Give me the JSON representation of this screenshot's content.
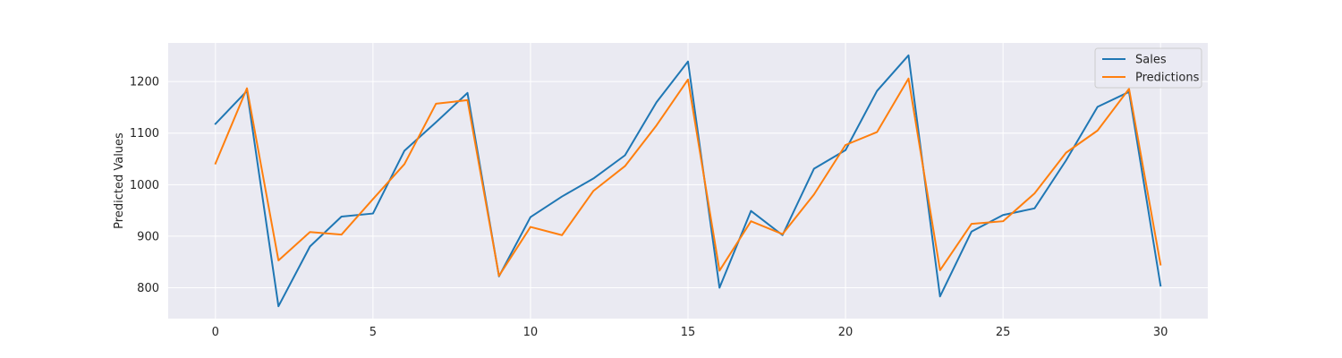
{
  "chart_data": {
    "type": "line",
    "title": "",
    "xlabel": "",
    "ylabel": "Predicted Values",
    "x": [
      0,
      1,
      2,
      3,
      4,
      5,
      6,
      7,
      8,
      9,
      10,
      11,
      12,
      13,
      14,
      15,
      16,
      17,
      18,
      19,
      20,
      21,
      22,
      23,
      24,
      25,
      26,
      27,
      28,
      29,
      30
    ],
    "xlim": [
      -1.5,
      31.5
    ],
    "ylim": [
      740,
      1275
    ],
    "xticks": [
      0,
      5,
      10,
      15,
      20,
      25,
      30
    ],
    "yticks": [
      800,
      900,
      1000,
      1100,
      1200
    ],
    "grid": true,
    "legend_position": "top-right",
    "series": [
      {
        "name": "Sales",
        "color": "#1f77b4",
        "values": [
          1118,
          1182,
          764,
          880,
          938,
          944,
          1066,
          1121,
          1178,
          822,
          937,
          977,
          1012,
          1057,
          1160,
          1239,
          800,
          949,
          902,
          1031,
          1067,
          1182,
          1251,
          783,
          909,
          941,
          954,
          1047,
          1151,
          1180,
          804
        ]
      },
      {
        "name": "Predictions",
        "color": "#ff7f0e",
        "values": [
          1041,
          1187,
          853,
          908,
          903,
          972,
          1040,
          1157,
          1164,
          823,
          918,
          902,
          988,
          1036,
          1115,
          1204,
          833,
          929,
          904,
          981,
          1077,
          1102,
          1206,
          834,
          924,
          929,
          983,
          1062,
          1105,
          1186,
          845
        ]
      }
    ]
  }
}
